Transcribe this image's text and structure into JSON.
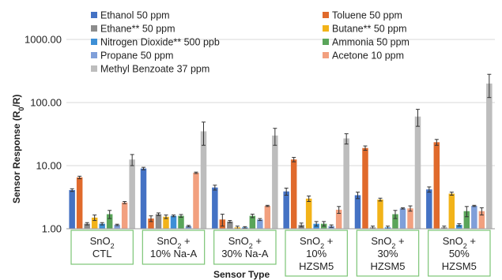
{
  "chart_data": {
    "type": "bar",
    "y_scale": "log",
    "ylim": [
      1,
      1000
    ],
    "yticks": [
      "1.00",
      "10.00",
      "100.00",
      "1000.00"
    ],
    "ylabel": "Sensor Response (R0/R)",
    "ylabel_parts": {
      "main": "Sensor Response (R",
      "sub": "0",
      "tail": "/R)"
    },
    "xlabel": "Sensor Type",
    "legend_position": "top",
    "categories": [
      {
        "line1": "SnO2",
        "line2": "CTL",
        "line3": ""
      },
      {
        "line1": "SnO2 +",
        "line2": "10% Na-A",
        "line3": ""
      },
      {
        "line1": "SnO2 +",
        "line2": "30% Na-A",
        "line3": ""
      },
      {
        "line1": "SnO2 +",
        "line2": "10%",
        "line3": "HZSM5"
      },
      {
        "line1": "SnO2 +",
        "line2": "30%",
        "line3": "HZSM5"
      },
      {
        "line1": "SnO2 +",
        "line2": "50%",
        "line3": "HZSM5"
      }
    ],
    "series": [
      {
        "name": "Ethanol 50 ppm",
        "color": "#4472c4",
        "values": [
          4.1,
          9.0,
          4.5,
          3.9,
          3.4,
          4.2
        ],
        "errors": [
          0.2,
          0.4,
          0.4,
          0.5,
          0.4,
          0.4
        ]
      },
      {
        "name": "Toluene 50 ppm",
        "color": "#e06a2c",
        "values": [
          6.5,
          1.45,
          1.4,
          12.5,
          19.0,
          23.5
        ],
        "errors": [
          0.3,
          0.15,
          0.3,
          1.0,
          1.5,
          2.5
        ]
      },
      {
        "name": "Ethane** 50 ppm",
        "color": "#8c8c8c",
        "values": [
          1.2,
          1.7,
          1.3,
          1.15,
          1.05,
          1.05
        ],
        "errors": [
          0.05,
          0.08,
          0.05,
          0.08,
          0.05,
          0.05
        ]
      },
      {
        "name": "Butane** 50 ppm",
        "color": "#f2b319",
        "values": [
          1.5,
          1.55,
          1.05,
          3.0,
          2.9,
          3.6
        ],
        "errors": [
          0.15,
          0.1,
          0.05,
          0.3,
          0.15,
          0.2
        ]
      },
      {
        "name": "Nitrogen Dioxide** 500 ppb",
        "color": "#3d8fd6",
        "values": [
          1.2,
          1.6,
          1.05,
          1.2,
          1.05,
          1.15
        ],
        "errors": [
          0.05,
          0.05,
          0.03,
          0.1,
          0.05,
          0.05
        ]
      },
      {
        "name": "Ammonia 50 ppm",
        "color": "#5aa55a",
        "values": [
          1.7,
          1.6,
          1.6,
          1.2,
          1.7,
          1.9
        ],
        "errors": [
          0.25,
          0.08,
          0.1,
          0.1,
          0.25,
          0.35
        ]
      },
      {
        "name": "Propane 50 ppm",
        "color": "#7f9fd9",
        "values": [
          1.15,
          1.1,
          1.4,
          1.1,
          2.1,
          2.3
        ],
        "errors": [
          0.03,
          0.03,
          0.05,
          0.05,
          0.05,
          0.05
        ]
      },
      {
        "name": "Acetone 10 ppm",
        "color": "#f2a07f",
        "values": [
          2.6,
          7.7,
          2.3,
          2.0,
          2.1,
          1.9
        ],
        "errors": [
          0.1,
          0.2,
          0.05,
          0.25,
          0.2,
          0.25
        ]
      },
      {
        "name": "Methyl Benzoate 37 ppm",
        "color": "#bdbdbd",
        "values": [
          12.5,
          35.0,
          30.0,
          27.0,
          60.0,
          200.0
        ],
        "errors": [
          2.5,
          14.0,
          9.0,
          5.0,
          18.0,
          80.0
        ]
      }
    ]
  }
}
